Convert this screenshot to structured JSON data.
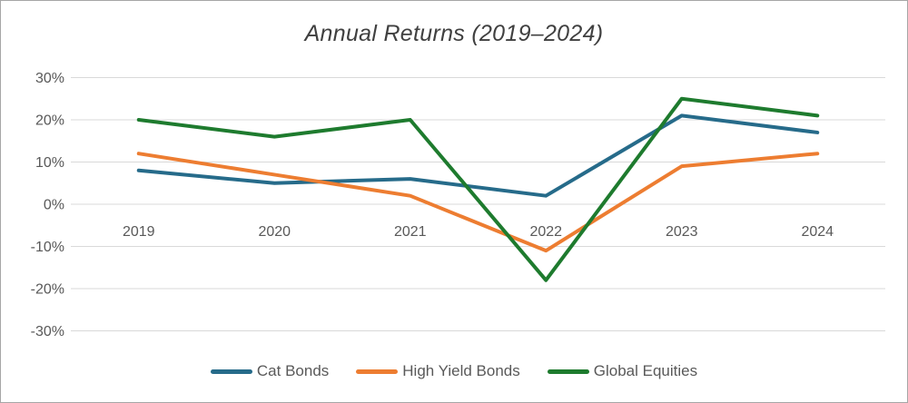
{
  "chart_data": {
    "type": "line",
    "title": "Annual Returns (2019–2024)",
    "categories": [
      "2019",
      "2020",
      "2021",
      "2022",
      "2023",
      "2024"
    ],
    "series": [
      {
        "name": "Cat Bonds",
        "color": "#266B8A",
        "values": [
          8,
          5,
          6,
          2,
          21,
          17
        ]
      },
      {
        "name": "High Yield Bonds",
        "color": "#ED7D31",
        "values": [
          12,
          7,
          2,
          -11,
          9,
          12
        ]
      },
      {
        "name": "Global Equities",
        "color": "#1E7B2E",
        "values": [
          20,
          16,
          20,
          -18,
          25,
          21
        ]
      }
    ],
    "y_axis": {
      "ticks": [
        30,
        20,
        10,
        0,
        -10,
        -20,
        -30
      ],
      "unit": "%",
      "min": -30,
      "max": 30
    },
    "x_axis": {
      "label": ""
    },
    "grid": true,
    "legend_position": "bottom",
    "colors": {
      "grid": "#D9D9D9",
      "axis_label": "#595959",
      "title": "#404040"
    }
  }
}
